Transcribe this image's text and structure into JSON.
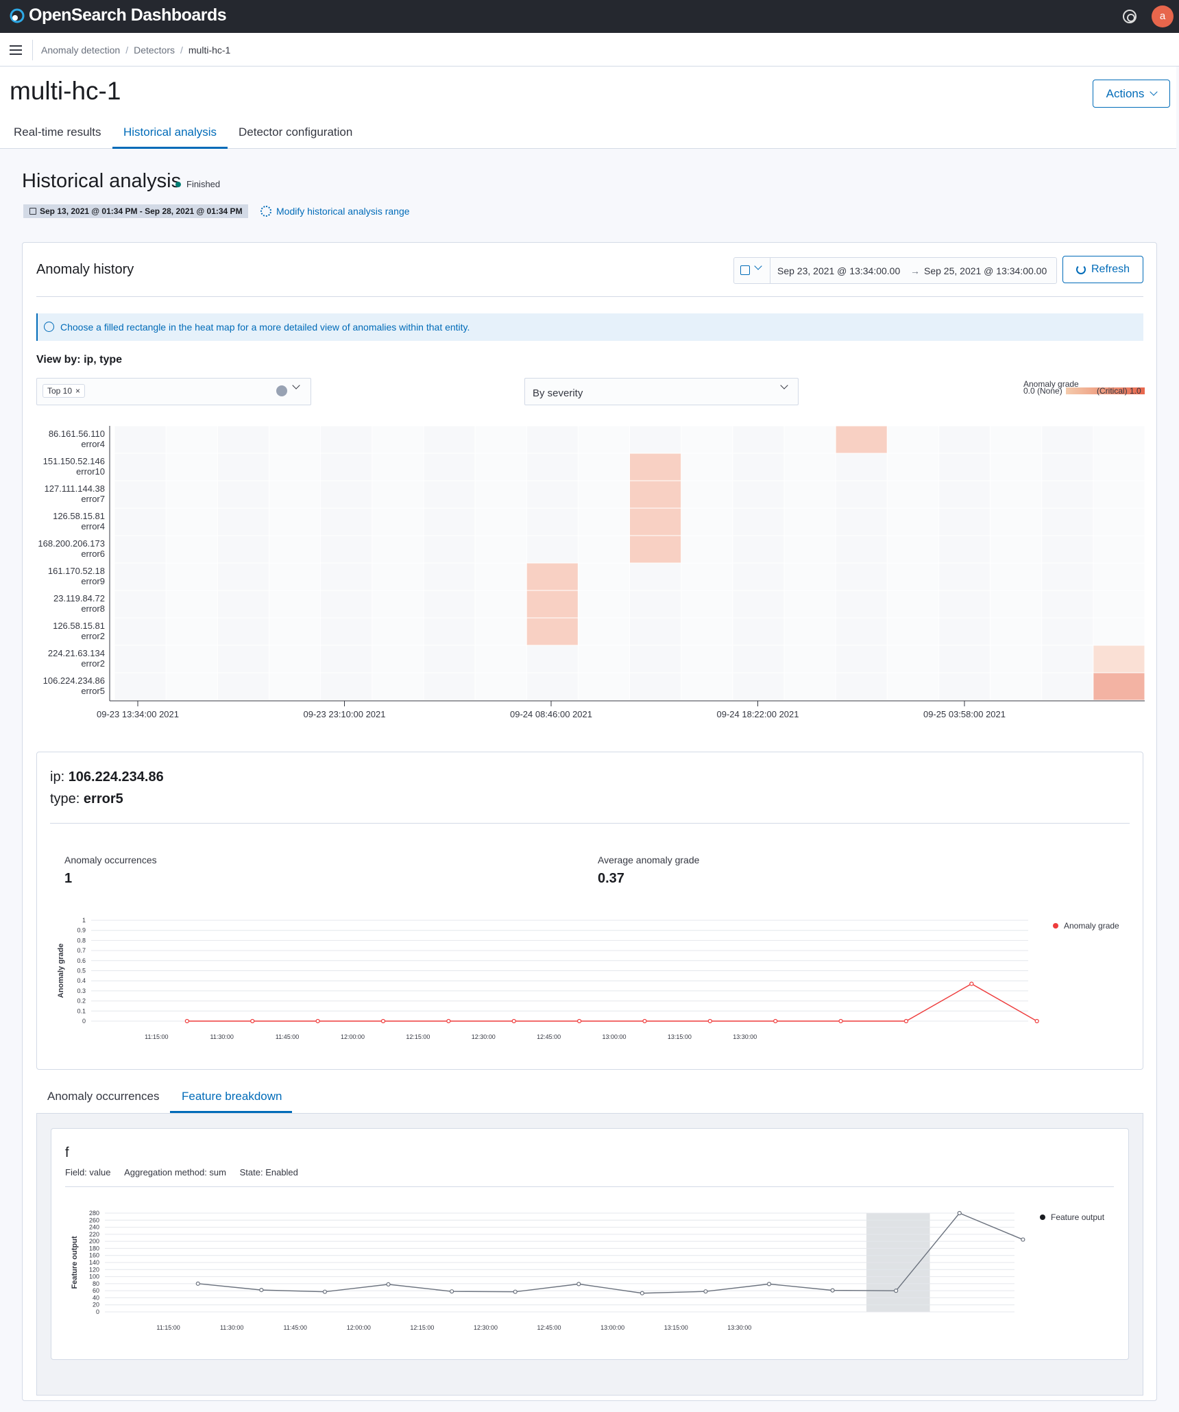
{
  "app": {
    "brand": "OpenSearch Dashboards",
    "avatar_letter": "a"
  },
  "breadcrumbs": [
    "Anomaly detection",
    "Detectors",
    "multi-hc-1"
  ],
  "page": {
    "title": "multi-hc-1",
    "actions_label": "Actions"
  },
  "tabs": [
    "Real-time results",
    "Historical analysis",
    "Detector configuration"
  ],
  "historical": {
    "title": "Historical analysis",
    "status": "Finished",
    "range": "Sep 13, 2021 @ 01:34 PM - Sep 28, 2021 @ 01:34 PM",
    "modify_label": "Modify historical analysis range"
  },
  "anomaly_history": {
    "title": "Anomaly history",
    "date_start": "Sep 23, 2021 @ 13:34:00.00",
    "date_arrow": "→",
    "date_end": "Sep 25, 2021 @ 13:34:00.00",
    "refresh_label": "Refresh",
    "callout": "Choose a filled rectangle in the heat map for a more detailed view of anomalies within that entity.",
    "view_by": "View by: ip, type",
    "top_pill": "Top 10",
    "pill_x": "×",
    "severity": "By severity",
    "legend": {
      "title": "Anomaly grade",
      "none": "0.0 (None)",
      "critical": "(Critical) 1.0"
    }
  },
  "entity": {
    "ip_label": "ip:",
    "ip_value": "106.224.234.86",
    "type_label": "type:",
    "type_value": "error5",
    "occ_label": "Anomaly occurrences",
    "occ_value": "1",
    "avg_label": "Average anomaly grade",
    "avg_value": "0.37"
  },
  "bottom_tabs": [
    "Anomaly occurrences",
    "Feature breakdown"
  ],
  "feature": {
    "name": "f",
    "field": "Field: value",
    "agg": "Aggregation method: sum",
    "state": "State: Enabled"
  },
  "chart_data": [
    {
      "type": "heatmap",
      "title": "",
      "rows": [
        {
          "ip": "86.161.56.110",
          "type": "error4",
          "cells": [
            {
              "col": 14,
              "grade": 0.2
            }
          ]
        },
        {
          "ip": "151.150.52.146",
          "type": "error10",
          "cells": [
            {
              "col": 10,
              "grade": 0.2
            }
          ]
        },
        {
          "ip": "127.111.144.38",
          "type": "error7",
          "cells": [
            {
              "col": 10,
              "grade": 0.2
            }
          ]
        },
        {
          "ip": "126.58.15.81",
          "type": "error4",
          "cells": [
            {
              "col": 10,
              "grade": 0.2
            }
          ]
        },
        {
          "ip": "168.200.206.173",
          "type": "error6",
          "cells": [
            {
              "col": 10,
              "grade": 0.2
            }
          ]
        },
        {
          "ip": "161.170.52.18",
          "type": "error9",
          "cells": [
            {
              "col": 8,
              "grade": 0.2
            }
          ]
        },
        {
          "ip": "23.119.84.72",
          "type": "error8",
          "cells": [
            {
              "col": 8,
              "grade": 0.2
            }
          ]
        },
        {
          "ip": "126.58.15.81",
          "type": "error2",
          "cells": [
            {
              "col": 8,
              "grade": 0.2
            }
          ]
        },
        {
          "ip": "224.21.63.134",
          "type": "error2",
          "cells": [
            {
              "col": 19,
              "grade": 0.1
            }
          ]
        },
        {
          "ip": "106.224.234.86",
          "type": "error5",
          "cells": [
            {
              "col": 19,
              "grade": 0.37
            }
          ]
        }
      ],
      "columns": 20,
      "x_ticks": [
        "09-23 13:34:00 2021",
        "09-23 23:10:00 2021",
        "09-24 08:46:00 2021",
        "09-24 18:22:00 2021",
        "09-25 03:58:00 2021"
      ],
      "color_low": "#f4cbad",
      "color_high": "#e7664c"
    },
    {
      "type": "line",
      "title": "",
      "ylabel": "Anomaly grade",
      "ylim": [
        0,
        1
      ],
      "y_ticks": [
        "0",
        "0.1",
        "0.2",
        "0.3",
        "0.4",
        "0.5",
        "0.6",
        "0.7",
        "0.8",
        "0.9",
        "1"
      ],
      "x_ticks": [
        "11:15:00",
        "11:30:00",
        "11:45:00",
        "12:00:00",
        "12:15:00",
        "12:30:00",
        "12:45:00",
        "13:00:00",
        "13:15:00",
        "13:30:00"
      ],
      "x_minutes": [
        665,
        680,
        695,
        710,
        725,
        740,
        755,
        770,
        785,
        800,
        815,
        830,
        845,
        860
      ],
      "values": [
        0,
        0,
        0,
        0,
        0,
        0,
        0,
        0,
        0,
        0,
        0,
        0,
        0.37,
        0
      ],
      "series_name": "Anomaly grade",
      "color": "#ee3c3c"
    },
    {
      "type": "line",
      "title": "",
      "ylabel": "Feature output",
      "ylim": [
        0,
        280
      ],
      "y_ticks": [
        "0",
        "20",
        "40",
        "60",
        "80",
        "100",
        "120",
        "140",
        "160",
        "180",
        "200",
        "220",
        "240",
        "260",
        "280"
      ],
      "x_ticks": [
        "11:15:00",
        "11:30:00",
        "11:45:00",
        "12:00:00",
        "12:15:00",
        "12:30:00",
        "12:45:00",
        "13:00:00",
        "13:15:00",
        "13:30:00"
      ],
      "x_minutes": [
        665,
        680,
        695,
        710,
        725,
        740,
        755,
        770,
        785,
        800,
        815,
        830,
        845,
        860
      ],
      "values": [
        80,
        62,
        57,
        78,
        58,
        57,
        79,
        53,
        58,
        79,
        61,
        60,
        280,
        205
      ],
      "series_name": "Feature output",
      "color": "#6a717d",
      "highlight": [
        830,
        845
      ]
    }
  ]
}
